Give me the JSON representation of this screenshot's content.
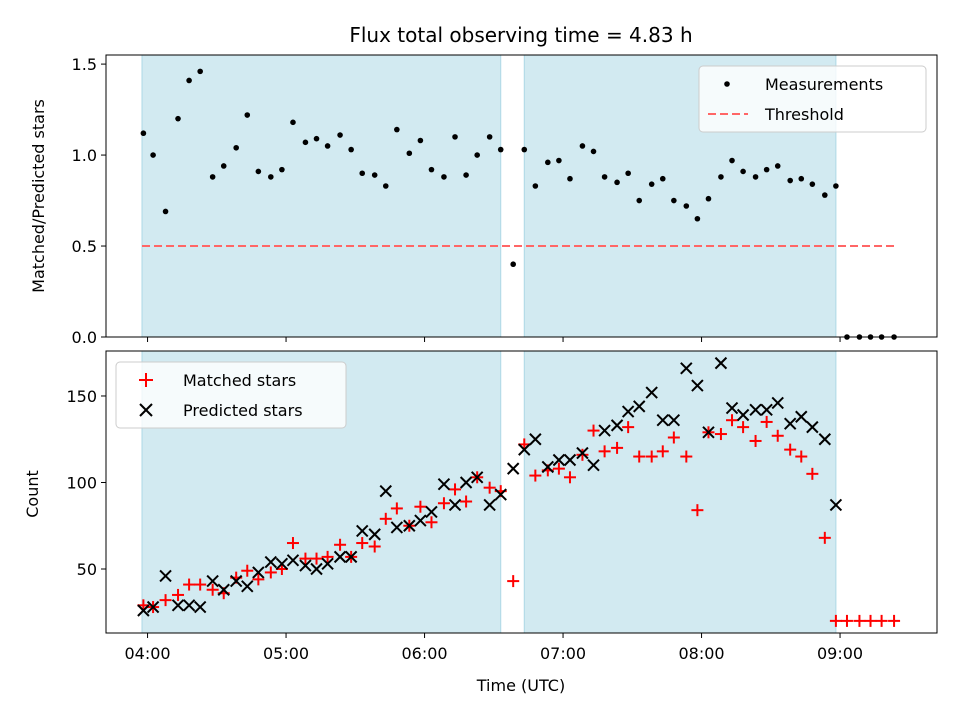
{
  "title": "Flux total observing time = 4.83 h",
  "colors": {
    "shade": "#add8e6",
    "measurement": "#000000",
    "threshold": "#ff6666",
    "matched": "#ff0000",
    "predicted": "#000000"
  },
  "xaxis": {
    "label": "Time (UTC)",
    "range_hours": [
      3.7,
      9.7
    ],
    "ticks": [
      4,
      5,
      6,
      7,
      8,
      9
    ],
    "tick_labels": [
      "04:00",
      "05:00",
      "06:00",
      "07:00",
      "08:00",
      "09:00"
    ]
  },
  "chart_data": [
    {
      "type": "scatter",
      "panel": "top",
      "title": "Flux total observing time = 4.83 h",
      "xlabel": "",
      "ylabel": "Matched/Predicted stars",
      "ylim": [
        0,
        1.55
      ],
      "yticks": [
        0.0,
        0.5,
        1.0,
        1.5
      ],
      "ytick_labels": [
        "0.0",
        "0.5",
        "1.0",
        "1.5"
      ],
      "shaded_spans_hours": [
        [
          3.96,
          6.55
        ],
        [
          6.72,
          8.97
        ]
      ],
      "legend": {
        "placement": "top-right",
        "entries": [
          "Measurements",
          "Threshold"
        ]
      },
      "threshold": 0.5,
      "threshold_range_hours": [
        3.96,
        9.4
      ],
      "series": [
        {
          "name": "Measurements",
          "x": [
            3.97,
            4.04,
            4.13,
            4.22,
            4.3,
            4.38,
            4.47,
            4.55,
            4.64,
            4.72,
            4.8,
            4.89,
            4.97,
            5.05,
            5.14,
            5.22,
            5.3,
            5.39,
            5.47,
            5.55,
            5.64,
            5.72,
            5.8,
            5.89,
            5.97,
            6.05,
            6.14,
            6.22,
            6.3,
            6.38,
            6.47,
            6.55,
            6.64,
            6.72,
            6.8,
            6.89,
            6.97,
            7.05,
            7.14,
            7.22,
            7.3,
            7.39,
            7.47,
            7.55,
            7.64,
            7.72,
            7.8,
            7.89,
            7.97,
            8.05,
            8.14,
            8.22,
            8.3,
            8.39,
            8.47,
            8.55,
            8.64,
            8.72,
            8.8,
            8.89,
            8.97,
            9.05,
            9.14,
            9.22,
            9.3,
            9.39
          ],
          "y": [
            1.12,
            1.0,
            0.69,
            1.2,
            1.41,
            1.46,
            0.88,
            0.94,
            1.04,
            1.22,
            0.91,
            0.88,
            0.92,
            1.18,
            1.07,
            1.09,
            1.05,
            1.11,
            1.03,
            0.9,
            0.89,
            0.83,
            1.14,
            1.01,
            1.08,
            0.92,
            0.88,
            1.1,
            0.89,
            1.0,
            1.1,
            1.03,
            0.4,
            1.03,
            0.83,
            0.96,
            0.97,
            0.87,
            1.05,
            1.02,
            0.88,
            0.85,
            0.9,
            0.75,
            0.84,
            0.87,
            0.75,
            0.72,
            0.65,
            0.76,
            0.88,
            0.97,
            0.91,
            0.88,
            0.92,
            0.94,
            0.86,
            0.87,
            0.84,
            0.78,
            0.83,
            0.0,
            0.0,
            0.0,
            0.0,
            0.0
          ]
        }
      ]
    },
    {
      "type": "scatter",
      "panel": "bottom",
      "title": "",
      "xlabel": "Time (UTC)",
      "ylabel": "Count",
      "ylim": [
        13,
        176
      ],
      "yticks": [
        50,
        100,
        150
      ],
      "ytick_labels": [
        "50",
        "100",
        "150"
      ],
      "shaded_spans_hours": [
        [
          3.96,
          6.55
        ],
        [
          6.72,
          8.97
        ]
      ],
      "legend": {
        "placement": "top-left",
        "entries": [
          "Matched stars",
          "Predicted stars"
        ]
      },
      "series": [
        {
          "name": "Matched stars",
          "marker": "+",
          "x": [
            3.97,
            4.04,
            4.13,
            4.22,
            4.3,
            4.38,
            4.47,
            4.55,
            4.64,
            4.72,
            4.8,
            4.89,
            4.97,
            5.05,
            5.14,
            5.22,
            5.3,
            5.39,
            5.47,
            5.55,
            5.64,
            5.72,
            5.8,
            5.89,
            5.97,
            6.05,
            6.14,
            6.22,
            6.3,
            6.38,
            6.47,
            6.55,
            6.64,
            6.72,
            6.8,
            6.89,
            6.97,
            7.05,
            7.14,
            7.22,
            7.3,
            7.39,
            7.47,
            7.55,
            7.64,
            7.72,
            7.8,
            7.89,
            7.97,
            8.05,
            8.14,
            8.22,
            8.3,
            8.39,
            8.47,
            8.55,
            8.64,
            8.72,
            8.8,
            8.89,
            8.97,
            9.05,
            9.14,
            9.22,
            9.3,
            9.39
          ],
          "y": [
            29,
            28,
            32,
            35,
            41,
            41,
            38,
            36,
            45,
            49,
            44,
            48,
            50,
            65,
            56,
            56,
            57,
            64,
            57,
            65,
            63,
            79,
            85,
            75,
            86,
            77,
            88,
            96,
            89,
            103,
            97,
            95,
            43,
            122,
            104,
            107,
            108,
            103,
            116,
            130,
            118,
            120,
            132,
            115,
            115,
            118,
            126,
            115,
            84,
            129,
            128,
            136,
            132,
            124,
            135,
            127,
            119,
            115,
            105,
            68,
            20,
            20,
            20,
            20,
            20,
            20
          ]
        },
        {
          "name": "Predicted stars",
          "marker": "x",
          "x": [
            3.97,
            4.04,
            4.13,
            4.22,
            4.3,
            4.38,
            4.47,
            4.55,
            4.64,
            4.72,
            4.8,
            4.89,
            4.97,
            5.05,
            5.14,
            5.22,
            5.3,
            5.39,
            5.47,
            5.55,
            5.64,
            5.72,
            5.8,
            5.89,
            5.97,
            6.05,
            6.14,
            6.22,
            6.3,
            6.38,
            6.47,
            6.55,
            6.64,
            6.72,
            6.8,
            6.89,
            6.97,
            7.05,
            7.14,
            7.22,
            7.3,
            7.39,
            7.47,
            7.55,
            7.64,
            7.72,
            7.8,
            7.89,
            7.97,
            8.05,
            8.14,
            8.22,
            8.3,
            8.39,
            8.47,
            8.55,
            8.64,
            8.72,
            8.8,
            8.89,
            8.97
          ],
          "y": [
            26,
            28,
            46,
            29,
            29,
            28,
            43,
            38,
            43,
            40,
            48,
            54,
            53,
            55,
            52,
            50,
            53,
            57,
            57,
            72,
            70,
            95,
            74,
            75,
            78,
            83,
            99,
            87,
            100,
            103,
            87,
            93,
            108,
            119,
            125,
            109,
            113,
            113,
            117,
            110,
            130,
            133,
            141,
            144,
            152,
            136,
            136,
            166,
            156,
            129,
            169,
            143,
            139,
            142,
            142,
            146,
            134,
            138,
            132,
            125,
            87
          ]
        }
      ]
    }
  ]
}
